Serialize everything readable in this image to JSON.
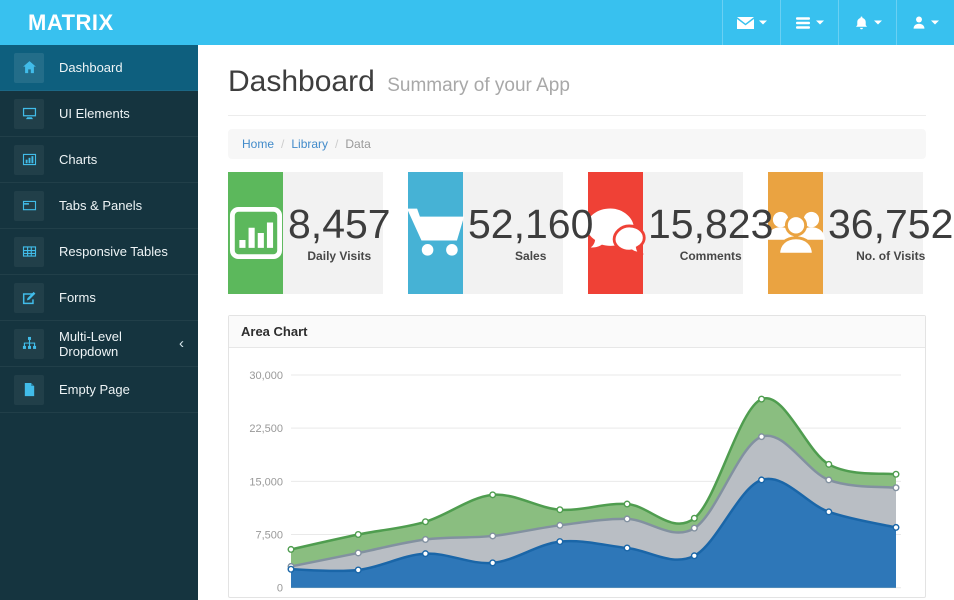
{
  "topbar": {
    "brand": "MATRIX",
    "background": "#38c1ef",
    "menus": [
      {
        "icon": "envelope-icon"
      },
      {
        "icon": "list-icon"
      },
      {
        "icon": "bell-icon"
      },
      {
        "icon": "user-icon"
      }
    ]
  },
  "sidebar": {
    "background": "#15343f",
    "active_background": "#0e5f7e",
    "items": [
      {
        "label": "Dashboard",
        "icon": "home-icon",
        "active": true
      },
      {
        "label": "UI Elements",
        "icon": "desktop-icon",
        "active": false
      },
      {
        "label": "Charts",
        "icon": "bar-chart-icon",
        "active": false
      },
      {
        "label": "Tabs & Panels",
        "icon": "tabs-icon",
        "active": false
      },
      {
        "label": "Responsive Tables",
        "icon": "table-icon",
        "active": false
      },
      {
        "label": "Forms",
        "icon": "edit-icon",
        "active": false
      },
      {
        "label": "Multi-Level Dropdown",
        "icon": "sitemap-icon",
        "active": false,
        "chevron": "‹"
      },
      {
        "label": "Empty Page",
        "icon": "file-icon",
        "active": false
      }
    ]
  },
  "page": {
    "title": "Dashboard",
    "subtitle": "Summary of your App",
    "breadcrumb": [
      {
        "label": "Home",
        "type": "link"
      },
      {
        "label": "Library",
        "type": "link"
      },
      {
        "label": "Data",
        "type": "current"
      }
    ]
  },
  "stats": [
    {
      "value": "8,457",
      "label": "Daily Visits",
      "color": "#5cb85c",
      "icon": "stats-icon"
    },
    {
      "value": "52,160",
      "label": "Sales",
      "color": "#46b2d5",
      "icon": "cart-icon"
    },
    {
      "value": "15,823",
      "label": "Comments",
      "color": "#ef4136",
      "icon": "comments-icon"
    },
    {
      "value": "36,752",
      "label": "No. of Visits",
      "color": "#eaa341",
      "icon": "users-icon"
    }
  ],
  "panel": {
    "title": "Area Chart"
  },
  "chart_data": {
    "type": "area",
    "title": "Area Chart",
    "x": [
      1,
      2,
      3,
      4,
      5,
      6,
      7,
      8,
      9,
      10
    ],
    "x_labels_visible": false,
    "series": [
      {
        "name": "green",
        "stroke": "#4f9d4f",
        "fill": "#8abe80",
        "values": [
          5400,
          7500,
          9300,
          13100,
          11000,
          11800,
          9800,
          26600,
          17400,
          16000
        ]
      },
      {
        "name": "gray",
        "stroke": "#8291a0",
        "fill": "#b9bec4",
        "values": [
          3000,
          4900,
          6800,
          7300,
          8800,
          9700,
          8400,
          21300,
          15200,
          14100
        ]
      },
      {
        "name": "blue",
        "stroke": "#1a66a8",
        "fill": "#2e77b8",
        "values": [
          2600,
          2500,
          4800,
          3500,
          6500,
          5600,
          4500,
          15200,
          10700,
          8500
        ]
      }
    ],
    "yticks": [
      {
        "v": 30000,
        "label": "30,000"
      },
      {
        "v": 22500,
        "label": "22,500"
      },
      {
        "v": 15000,
        "label": "15,000"
      },
      {
        "v": 7500,
        "label": "7,500"
      },
      {
        "v": 0,
        "label": "0"
      }
    ],
    "ylim": [
      0,
      30000
    ],
    "grid": true,
    "legend": "none"
  }
}
